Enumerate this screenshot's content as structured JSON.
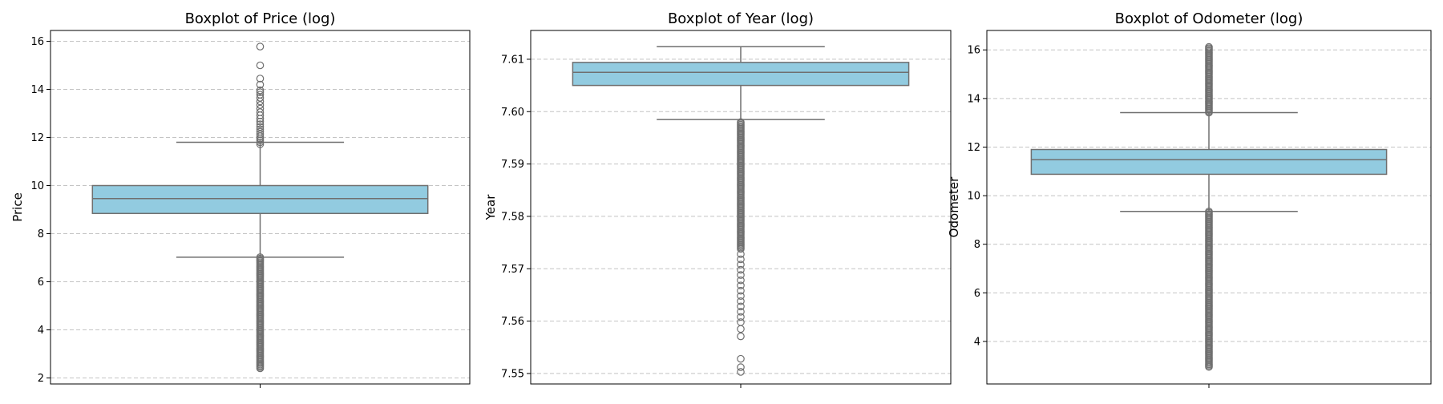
{
  "chart_data": [
    {
      "type": "boxplot",
      "title": "Boxplot of Price (log)",
      "xlabel": "",
      "ylabel": "Price",
      "ylim": [
        1.75,
        16.45
      ],
      "yticks": [
        2,
        4,
        6,
        8,
        10,
        12,
        14,
        16
      ],
      "tick_labels": [
        "2",
        "4",
        "6",
        "8",
        "10",
        "12",
        "14",
        "16"
      ],
      "grid": "y-dashed",
      "box_color": "#92cbe0",
      "line_color": "#6f6f6f",
      "stats": {
        "whisker_low": 7.02,
        "q1": 8.84,
        "median": 9.46,
        "q3": 10.0,
        "whisker_high": 11.8
      },
      "outliers_high": [
        11.72,
        11.8,
        11.88,
        11.96,
        12.05,
        12.14,
        12.24,
        12.34,
        12.44,
        12.55,
        12.66,
        12.78,
        12.92,
        13.05,
        13.2,
        13.35,
        13.5,
        13.65,
        13.78,
        13.88,
        13.96,
        14.2,
        14.45,
        15.0,
        15.78
      ],
      "outliers_low_range": [
        2.4,
        7.02
      ]
    },
    {
      "type": "boxplot",
      "title": "Boxplot of Year (log)",
      "xlabel": "",
      "ylabel": "Year",
      "ylim": [
        7.548,
        7.6155
      ],
      "yticks": [
        7.55,
        7.56,
        7.57,
        7.58,
        7.59,
        7.6,
        7.61
      ],
      "tick_labels": [
        "7.55",
        "7.56",
        "7.57",
        "7.58",
        "7.59",
        "7.60",
        "7.61"
      ],
      "grid": "y-dashed",
      "box_color": "#92cbe0",
      "line_color": "#6f6f6f",
      "stats": {
        "whisker_low": 7.5985,
        "q1": 7.605,
        "median": 7.6075,
        "q3": 7.6094,
        "whisker_high": 7.6124
      },
      "outliers_high": [],
      "outliers_low_range": [
        7.5738,
        7.598
      ],
      "outliers_low_extra": [
        7.5728,
        7.5718,
        7.5708,
        7.5698,
        7.5688,
        7.5678,
        7.5668,
        7.5658,
        7.5648,
        7.5638,
        7.5628,
        7.5618,
        7.5608,
        7.5598,
        7.5585,
        7.5571,
        7.5528,
        7.5512,
        7.5503
      ]
    },
    {
      "type": "boxplot",
      "title": "Boxplot of Odometer (log)",
      "xlabel": "",
      "ylabel": "Odometer",
      "ylim": [
        2.25,
        16.8
      ],
      "yticks": [
        4,
        6,
        8,
        10,
        12,
        14,
        16
      ],
      "tick_labels": [
        "4",
        "6",
        "8",
        "10",
        "12",
        "14",
        "16"
      ],
      "grid": "y-dashed",
      "box_color": "#92cbe0",
      "line_color": "#6f6f6f",
      "stats": {
        "whisker_low": 9.35,
        "q1": 10.88,
        "median": 11.48,
        "q3": 11.9,
        "whisker_high": 13.42
      },
      "outliers_high_range": [
        13.42,
        16.12
      ],
      "outliers_low_range": [
        2.95,
        9.35
      ]
    }
  ]
}
